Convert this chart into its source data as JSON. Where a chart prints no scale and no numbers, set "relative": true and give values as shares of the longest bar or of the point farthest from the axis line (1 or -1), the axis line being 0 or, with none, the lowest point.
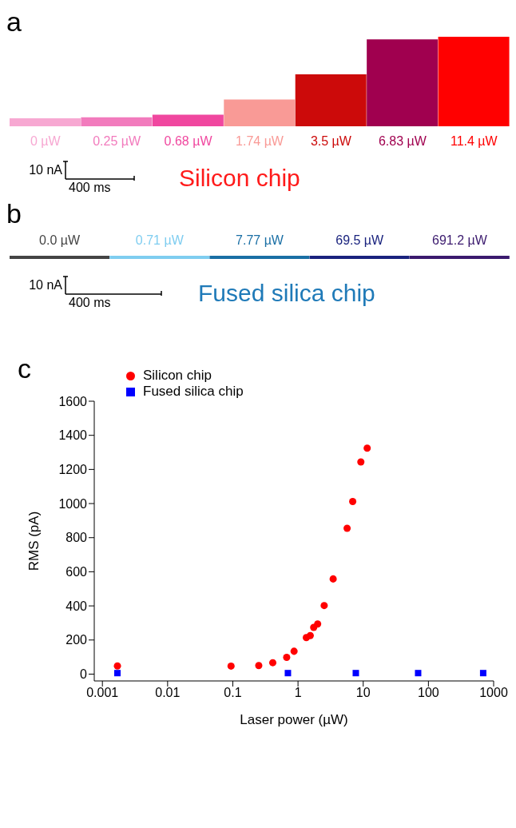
{
  "chart_data": [
    {
      "type": "bar",
      "relative": true,
      "title": "Silicon chip",
      "annotations": [
        "a",
        "10 nA",
        "400 ms"
      ],
      "categories": [
        "0 µW",
        "0.25 µW",
        "0.68 µW",
        "1.74 µW",
        "3.5 µW",
        "6.83 µW",
        "11.4 µW"
      ],
      "values": [
        0.09,
        0.1,
        0.13,
        0.3,
        0.58,
        0.97,
        1
      ],
      "colors": [
        "#f7a8d2",
        "#f27bbd",
        "#f0479f",
        "#f99a96",
        "#cc0a0a",
        "#a0004f",
        "#ff0000"
      ]
    },
    {
      "type": "bar",
      "relative": true,
      "title": "Fused silica chip",
      "annotations": [
        "b",
        "10 nA",
        "400 ms"
      ],
      "categories": [
        "0.0 µW",
        "0.71 µW",
        "7.77 µW",
        "69.5 µW",
        "691.2 µW"
      ],
      "values": [
        1,
        1,
        1,
        1,
        1
      ],
      "colors": [
        "#444444",
        "#7fcdf0",
        "#1a6fa5",
        "#1a237e",
        "#3b1a6e"
      ]
    },
    {
      "type": "scatter",
      "annotations": [
        "c"
      ],
      "xlabel": "Laser power (µW)",
      "ylabel": "RMS (pA)",
      "log": "x",
      "legend": "top left",
      "grid": false,
      "xlim": [
        0.00075,
        1000
      ],
      "xticks": [
        0.001,
        0.01,
        0.1,
        1,
        10,
        100,
        1000
      ],
      "ylim": [
        -40,
        1600
      ],
      "yticks": [
        0,
        200,
        400,
        600,
        800,
        1000,
        1200,
        1400,
        1600
      ],
      "series": [
        {
          "name": "Silicon chip",
          "color": "#ff0000",
          "marker": "circle",
          "x": [
            0.0017,
            0.094,
            0.25,
            0.41,
            0.67,
            0.87,
            1.34,
            1.54,
            1.74,
            2.0,
            2.52,
            3.46,
            5.66,
            6.9,
            9.2,
            11.5
          ],
          "values": [
            48,
            47,
            50,
            67,
            98,
            134,
            214,
            226,
            274,
            294,
            402,
            558,
            855,
            1012,
            1244,
            1325
          ]
        },
        {
          "name": "Fused silica chip",
          "color": "#0000ff",
          "marker": "square",
          "x": [
            0.0017,
            0.7,
            7.7,
            69.5,
            691.2
          ],
          "values": [
            6,
            6,
            6,
            6,
            6
          ]
        }
      ]
    }
  ]
}
